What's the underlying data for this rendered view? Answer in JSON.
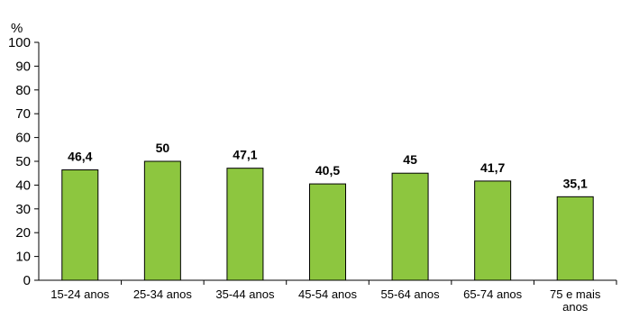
{
  "chart_data": {
    "type": "bar",
    "unit": "%",
    "categories": [
      "15-24 anos",
      "25-34 anos",
      "35-44 anos",
      "45-54 anos",
      "55-64 anos",
      "65-74 anos",
      "75 e mais anos"
    ],
    "values": [
      46.4,
      50,
      47.1,
      40.5,
      45,
      41.7,
      35.1
    ],
    "value_labels": [
      "46,4",
      "50",
      "47,1",
      "40,5",
      "45",
      "41,7",
      "35,1"
    ],
    "y_ticks": [
      "0",
      "10",
      "20",
      "30",
      "40",
      "50",
      "60",
      "70",
      "80",
      "90",
      "100"
    ],
    "ylim": [
      0,
      100
    ],
    "grid": false,
    "bar_color": "#8dc63f",
    "bar_stroke": "#000000"
  }
}
